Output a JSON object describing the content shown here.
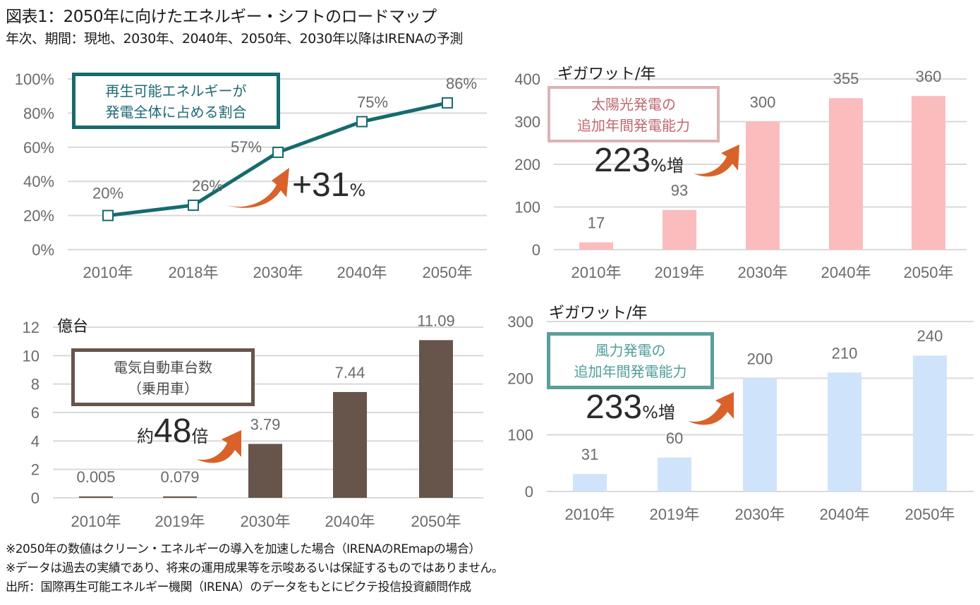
{
  "header": {
    "title": "図表1：2050年に向けたエネルギー・シフトのロードマップ",
    "subtitle": "年次、期間：現地、2030年、2040年、2050年、2030年以降はIRENAの予測"
  },
  "footnotes": [
    "※2050年の数値はクリーン・エネルギーの導入を加速した場合（IRENAのREmapの場合）",
    "※データは過去の実績であり、将来の運用成果等を示唆あるいは保証するものではありません。",
    "出所：国際再生可能エネルギー機関（IRENA）のデータをもとにピクテ投信投資顧問作成"
  ],
  "panels": {
    "renewable_share": {
      "legend_line1": "再生可能エネルギーが",
      "legend_line2": "発電全体に占める割合",
      "callout_big": "+31",
      "callout_small": "%",
      "color": "#156b6e"
    },
    "solar": {
      "unit": "ギガワット/年",
      "legend_line1": "太陽光発電の",
      "legend_line2": "追加年間発電能力",
      "callout_big": "223",
      "callout_small": "%増",
      "color": "#fbbcbe",
      "legend_color": "#c0666e",
      "legend_border": "#dcb3b6"
    },
    "ev": {
      "unit": "億台",
      "legend_line1": "電気自動車台数",
      "legend_line2": "（乗用車）",
      "callout_prefix": "約",
      "callout_big": "48",
      "callout_small": "倍",
      "color": "#67544b"
    },
    "wind": {
      "unit": "ギガワット/年",
      "legend_line1": "風力発電の",
      "legend_line2": "追加年間発電能力",
      "callout_big": "233",
      "callout_small": "%増",
      "color": "#cfe4fb",
      "legend_color": "#4f9e9a",
      "legend_border": "#5a9f9b"
    }
  },
  "chart_data": [
    {
      "type": "line",
      "title": "再生可能エネルギーが発電全体に占める割合",
      "categories": [
        "2010年",
        "2018年",
        "2030年",
        "2040年",
        "2050年"
      ],
      "values": [
        20,
        26,
        57,
        75,
        86
      ],
      "data_labels": [
        "20%",
        "26%",
        "57%",
        "75%",
        "86%"
      ],
      "yticks": [
        "0%",
        "20%",
        "40%",
        "60%",
        "80%",
        "100%"
      ],
      "ylim": [
        0,
        100
      ],
      "ylabel": "",
      "xlabel": "",
      "grid": true,
      "annotation": "+31%"
    },
    {
      "type": "bar",
      "title": "太陽光発電の追加年間発電能力",
      "categories": [
        "2010年",
        "2019年",
        "2030年",
        "2040年",
        "2050年"
      ],
      "values": [
        17,
        93,
        300,
        355,
        360
      ],
      "data_labels": [
        "17",
        "93",
        "300",
        "355",
        "360"
      ],
      "yticks": [
        "0",
        "100",
        "200",
        "300",
        "400"
      ],
      "ylim": [
        0,
        400
      ],
      "ylabel": "ギガワット/年",
      "xlabel": "",
      "grid": true,
      "annotation": "223%増"
    },
    {
      "type": "bar",
      "title": "電気自動車台数（乗用車）",
      "categories": [
        "2010年",
        "2019年",
        "2030年",
        "2040年",
        "2050年"
      ],
      "values": [
        0.005,
        0.079,
        3.79,
        7.44,
        11.09
      ],
      "data_labels": [
        "0.005",
        "0.079",
        "3.79",
        "7.44",
        "11.09"
      ],
      "yticks": [
        "0",
        "2",
        "4",
        "6",
        "8",
        "10",
        "12"
      ],
      "ylim": [
        0,
        12
      ],
      "ylabel": "億台",
      "xlabel": "",
      "grid": true,
      "annotation": "約48倍"
    },
    {
      "type": "bar",
      "title": "風力発電の追加年間発電能力",
      "categories": [
        "2010年",
        "2019年",
        "2030年",
        "2040年",
        "2050年"
      ],
      "values": [
        31,
        60,
        200,
        210,
        240
      ],
      "data_labels": [
        "31",
        "60",
        "200",
        "210",
        "240"
      ],
      "yticks": [
        "0",
        "100",
        "200",
        "300"
      ],
      "ylim": [
        0,
        300
      ],
      "ylabel": "ギガワット/年",
      "xlabel": "",
      "grid": true,
      "annotation": "233%増"
    }
  ]
}
